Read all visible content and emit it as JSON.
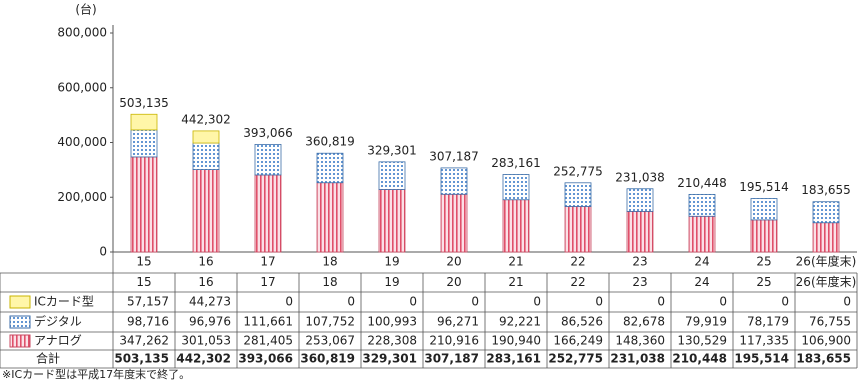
{
  "chart_data": {
    "type": "stacked-bar",
    "unit_label": "(台)",
    "categories": [
      "15",
      "16",
      "17",
      "18",
      "19",
      "20",
      "21",
      "22",
      "23",
      "24",
      "25",
      "26(年度末)"
    ],
    "series": [
      {
        "name": "ICカード型",
        "color": "#fff6a8",
        "edge": "#c8b400",
        "values": [
          57157,
          44273,
          0,
          0,
          0,
          0,
          0,
          0,
          0,
          0,
          0,
          0
        ],
        "value_labels": [
          "57,157",
          "44,273",
          "0",
          "0",
          "0",
          "0",
          "0",
          "0",
          "0",
          "0",
          "0",
          "0"
        ]
      },
      {
        "name": "デジタル",
        "color": "#3c7cc8",
        "edge": "#3c6ea8",
        "values": [
          98716,
          96976,
          111661,
          107752,
          100993,
          96271,
          92221,
          86526,
          82678,
          79919,
          78179,
          76755
        ],
        "value_labels": [
          "98,716",
          "96,976",
          "111,661",
          "107,752",
          "100,993",
          "96,271",
          "92,221",
          "86,526",
          "82,678",
          "79,919",
          "78,179",
          "76,755"
        ]
      },
      {
        "name": "アナログ",
        "color": "#e0506a",
        "edge": "#c84860",
        "values": [
          347262,
          301053,
          281405,
          253067,
          228308,
          210916,
          190940,
          166249,
          148360,
          130529,
          117335,
          106900
        ],
        "value_labels": [
          "347,262",
          "301,053",
          "281,405",
          "253,067",
          "228,308",
          "210,916",
          "190,940",
          "166,249",
          "148,360",
          "130,529",
          "117,335",
          "106,900"
        ]
      }
    ],
    "totals": {
      "name": "合計",
      "values": [
        503135,
        442302,
        393066,
        360819,
        329301,
        307187,
        283161,
        252775,
        231038,
        210448,
        195514,
        183655
      ],
      "value_labels": [
        "503,135",
        "442,302",
        "393,066",
        "360,819",
        "329,301",
        "307,187",
        "283,161",
        "252,775",
        "231,038",
        "210,448",
        "195,514",
        "183,655"
      ]
    },
    "ylim": [
      0,
      800000
    ],
    "yticks": [
      0,
      {
        "value": 200000,
        "label": "200,000"
      },
      {
        "value": 400000,
        "label": "400,000"
      },
      {
        "value": 600000,
        "label": "600,000"
      },
      {
        "value": 800000,
        "label": "800,000"
      }
    ],
    "grid": false,
    "footnote": "※ICカード型は平成17年度末で終了。"
  }
}
